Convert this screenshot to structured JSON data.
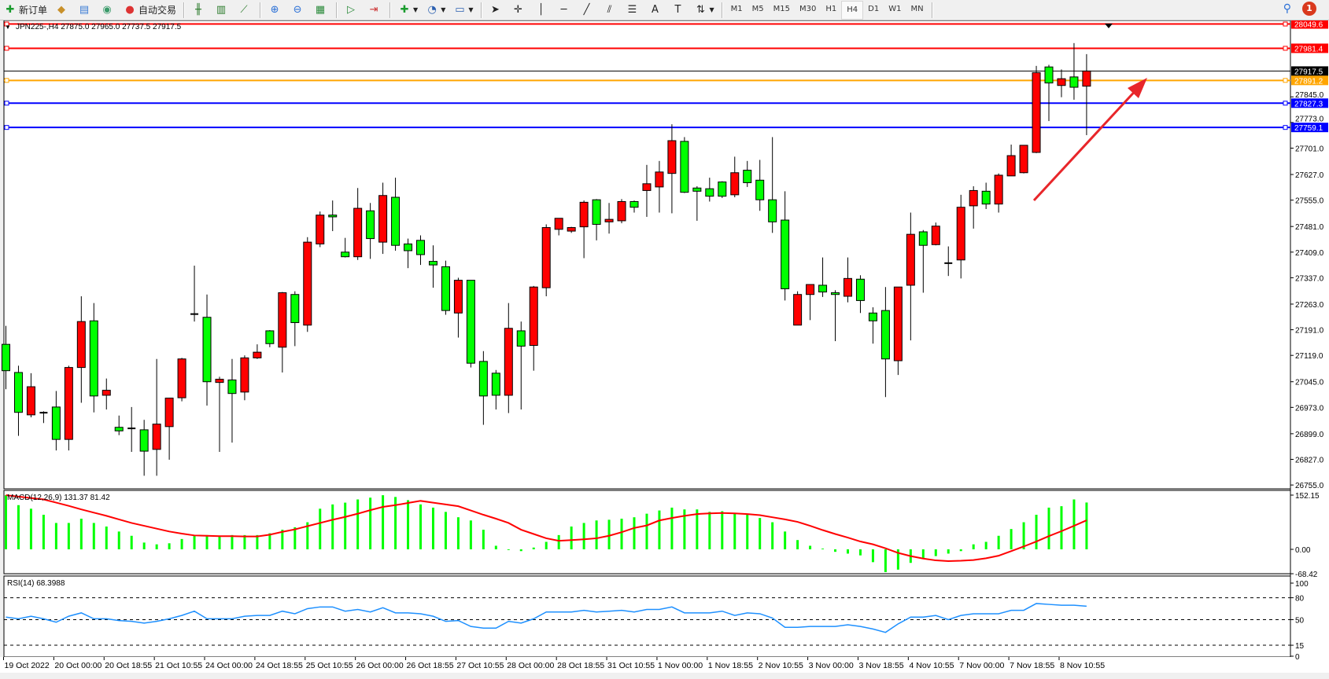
{
  "toolbar": {
    "new_order": "新订单",
    "auto_trading": "自动交易",
    "timeframes": [
      "M1",
      "M5",
      "M15",
      "M30",
      "H1",
      "H4",
      "D1",
      "W1",
      "MN"
    ],
    "active_timeframe": "H4",
    "notification_count": "1",
    "icons": [
      "new-order-icon",
      "gold-icon",
      "data-window-icon",
      "signal-icon",
      "auto-trading-icon",
      "bar-chart-icon",
      "candlestick-icon",
      "line-chart-icon",
      "zoom-in-icon",
      "zoom-out-icon",
      "tile-windows-icon",
      "auto-scroll-icon",
      "chart-shift-icon",
      "indicators-icon",
      "periods-icon",
      "templates-icon",
      "cursor-icon",
      "crosshair-icon",
      "vertical-line-icon",
      "horizontal-line-icon",
      "trendline-icon",
      "equidistant-channel-icon",
      "fibonacci-icon",
      "text-icon",
      "text-label-icon",
      "arrows-icon"
    ]
  },
  "chart": {
    "symbol_info": "JPN225-,H4  27875.0 27965.0 27737.5 27917.5",
    "colors": {
      "bull": "#ff0000",
      "bear": "#00ff00",
      "macd_hist": "#00ff00",
      "signal": "#ff0000",
      "rsi": "#1e90ff"
    }
  },
  "chart_data": [
    {
      "type": "candlestick",
      "title": "JPN225-,H4",
      "ylim": [
        26755.0,
        28049.6
      ],
      "y_ticks": [
        "27845.0",
        "27773.0",
        "27701.0",
        "27627.0",
        "27555.0",
        "27481.0",
        "27409.0",
        "27337.0",
        "27263.0",
        "27191.0",
        "27119.0",
        "27045.0",
        "26973.0",
        "26899.0",
        "26827.0",
        "26755.0"
      ],
      "x_ticks": [
        "19 Oct 2022",
        "20 Oct 00:00",
        "20 Oct 18:55",
        "21 Oct 10:55",
        "24 Oct 00:00",
        "24 Oct 18:55",
        "25 Oct 10:55",
        "26 Oct 00:00",
        "26 Oct 18:55",
        "27 Oct 10:55",
        "28 Oct 00:00",
        "28 Oct 18:55",
        "31 Oct 10:55",
        "1 Nov 00:00",
        "1 Nov 18:55",
        "2 Nov 10:55",
        "3 Nov 00:00",
        "3 Nov 18:55",
        "4 Nov 10:55",
        "7 Nov 00:00",
        "7 Nov 18:55",
        "8 Nov 10:55"
      ],
      "ohlc": [
        [
          27150,
          27202,
          27024,
          27076
        ],
        [
          27071,
          27090,
          26893,
          26959
        ],
        [
          26952,
          27069,
          26945,
          27031
        ],
        [
          26957,
          26962,
          26929,
          26958
        ],
        [
          26974,
          27019,
          26852,
          26883
        ],
        [
          26883,
          27090,
          26852,
          27085
        ],
        [
          27085,
          27285,
          26986,
          27214
        ],
        [
          27216,
          27266,
          26959,
          27005
        ],
        [
          27007,
          27054,
          26967,
          27021
        ],
        [
          26917,
          26950,
          26895,
          26907
        ],
        [
          26914,
          26974,
          26848,
          26914
        ],
        [
          26910,
          26938,
          26781,
          26850
        ],
        [
          26855,
          27109,
          26781,
          26926
        ],
        [
          26919,
          27000,
          26826,
          26999
        ],
        [
          27000,
          27112,
          26990,
          27109
        ],
        [
          27235,
          27371,
          27214,
          27234
        ],
        [
          27226,
          27290,
          26978,
          27045
        ],
        [
          27043,
          27059,
          26848,
          27052
        ],
        [
          27050,
          27109,
          26874,
          27012
        ],
        [
          27016,
          27119,
          26993,
          27112
        ],
        [
          27112,
          27150,
          27109,
          27128
        ],
        [
          27188,
          27190,
          27142,
          27152
        ],
        [
          27142,
          27297,
          27071,
          27295
        ],
        [
          27290,
          27299,
          27145,
          27211
        ],
        [
          27204,
          27451,
          27185,
          27437
        ],
        [
          27432,
          27523,
          27423,
          27513
        ],
        [
          27513,
          27554,
          27468,
          27508
        ],
        [
          27409,
          27449,
          27394,
          27396
        ],
        [
          27396,
          27589,
          27387,
          27532
        ],
        [
          27525,
          27547,
          27390,
          27447
        ],
        [
          27437,
          27604,
          27404,
          27568
        ],
        [
          27563,
          27618,
          27413,
          27428
        ],
        [
          27432,
          27447,
          27364,
          27413
        ],
        [
          27442,
          27456,
          27373,
          27402
        ],
        [
          27383,
          27428,
          27309,
          27373
        ],
        [
          27368,
          27385,
          27233,
          27245
        ],
        [
          27238,
          27337,
          27169,
          27330
        ],
        [
          27330,
          27330,
          27085,
          27097
        ],
        [
          27102,
          27131,
          26924,
          27005
        ],
        [
          27069,
          27078,
          26967,
          27007
        ],
        [
          27007,
          27266,
          26957,
          27195
        ],
        [
          27188,
          27214,
          26967,
          27145
        ],
        [
          27147,
          27314,
          27076,
          27311
        ],
        [
          27309,
          27487,
          27285,
          27478
        ],
        [
          27473,
          27504,
          27456,
          27504
        ],
        [
          27468,
          27480,
          27463,
          27478
        ],
        [
          27480,
          27554,
          27392,
          27549
        ],
        [
          27556,
          27558,
          27442,
          27487
        ],
        [
          27494,
          27547,
          27461,
          27501
        ],
        [
          27497,
          27558,
          27490,
          27551
        ],
        [
          27551,
          27554,
          27520,
          27535
        ],
        [
          27582,
          27654,
          27508,
          27601
        ],
        [
          27592,
          27665,
          27520,
          27634
        ],
        [
          27630,
          27768,
          27518,
          27722
        ],
        [
          27720,
          27732,
          27575,
          27577
        ],
        [
          27589,
          27594,
          27497,
          27580
        ],
        [
          27587,
          27618,
          27551,
          27566
        ],
        [
          27606,
          27608,
          27561,
          27566
        ],
        [
          27570,
          27677,
          27563,
          27632
        ],
        [
          27639,
          27665,
          27592,
          27604
        ],
        [
          27611,
          27668,
          27525,
          27556
        ],
        [
          27556,
          27732,
          27463,
          27494
        ],
        [
          27499,
          27580,
          27273,
          27306
        ],
        [
          27204,
          27299,
          27204,
          27290
        ],
        [
          27290,
          27318,
          27218,
          27318
        ],
        [
          27316,
          27394,
          27283,
          27297
        ],
        [
          27295,
          27302,
          27159,
          27290
        ],
        [
          27285,
          27394,
          27268,
          27335
        ],
        [
          27333,
          27344,
          27238,
          27273
        ],
        [
          27238,
          27254,
          27152,
          27216
        ],
        [
          27245,
          27311,
          27002,
          27109
        ],
        [
          27104,
          27311,
          27064,
          27311
        ],
        [
          27316,
          27520,
          27161,
          27459
        ],
        [
          27466,
          27471,
          27295,
          27428
        ],
        [
          27430,
          27492,
          27428,
          27482
        ],
        [
          27378,
          27425,
          27342,
          27377
        ],
        [
          27387,
          27570,
          27335,
          27535
        ],
        [
          27539,
          27594,
          27475,
          27582
        ],
        [
          27580,
          27604,
          27530,
          27544
        ],
        [
          27544,
          27630,
          27520,
          27625
        ],
        [
          27623,
          27711,
          27625,
          27680
        ],
        [
          27632,
          27709,
          27630,
          27709
        ],
        [
          27689,
          27932,
          27687,
          27913
        ],
        [
          27929,
          27935,
          27777,
          27884
        ],
        [
          27877,
          27922,
          27844,
          27896
        ],
        [
          27901,
          27996,
          27837,
          27872
        ],
        [
          27875,
          27965,
          27737.5,
          27917.5
        ]
      ],
      "horizontal_lines": [
        {
          "value": "28049.6",
          "color": "#ff0000"
        },
        {
          "value": "27981.4",
          "color": "#ff0000"
        },
        {
          "value": "27917.5",
          "color": "#000000"
        },
        {
          "value": "27891.2",
          "color": "#ffa500"
        },
        {
          "value": "27827.3",
          "color": "#0000ff"
        },
        {
          "value": "27759.1",
          "color": "#0000ff"
        }
      ],
      "annotation": {
        "type": "arrow",
        "color": "#e8262a"
      }
    },
    {
      "type": "bar",
      "title": "MACD(12,26,9) 131.37 81.42",
      "ylim": [
        -68.42,
        152.15
      ],
      "y_ticks": [
        "152.15",
        "0.00",
        "-68.42"
      ],
      "macd": [
        152,
        124,
        114,
        97,
        74,
        74,
        86,
        74,
        64,
        50,
        38,
        19,
        14,
        17,
        29,
        40,
        40,
        38,
        40,
        40,
        40,
        45,
        55,
        62,
        76,
        114,
        126,
        131,
        140,
        145,
        152,
        147,
        138,
        126,
        117,
        105,
        90,
        81,
        55,
        10,
        -2,
        -5,
        5,
        21,
        40,
        64,
        74,
        81,
        83,
        86,
        90,
        100,
        109,
        117,
        112,
        112,
        105,
        107,
        102,
        97,
        88,
        76,
        50,
        26,
        10,
        2,
        -7,
        -12,
        -17,
        -36,
        -64,
        -57,
        -38,
        -26,
        -19,
        -12,
        -5,
        14,
        21,
        38,
        57,
        76,
        97,
        117,
        121,
        140,
        131.37
      ],
      "signal": [
        152,
        148,
        144,
        140,
        131,
        122,
        112,
        103,
        94,
        84,
        74,
        66,
        58,
        50,
        44,
        39,
        38,
        37,
        37,
        36,
        36,
        41,
        49,
        56,
        65,
        74,
        83,
        91,
        100,
        110,
        119,
        124,
        130,
        136,
        131,
        126,
        121,
        109,
        97,
        86,
        74,
        55,
        43,
        31,
        24,
        26,
        28,
        31,
        38,
        48,
        60,
        67,
        81,
        88,
        94,
        99,
        101,
        102,
        101,
        99,
        96,
        90,
        84,
        77,
        66,
        54,
        43,
        33,
        22,
        14,
        3,
        -10,
        -19,
        -26,
        -31,
        -33,
        -32,
        -30,
        -25,
        -18,
        -5,
        8,
        22,
        37,
        51,
        66,
        81.42
      ]
    },
    {
      "type": "line",
      "title": "RSI(14) 68.3988",
      "ylim": [
        0,
        100
      ],
      "y_ticks": [
        "100",
        "80",
        "50",
        "15",
        "0"
      ],
      "levels": [
        80,
        50,
        15
      ],
      "values": [
        53.5,
        51.2,
        54.7,
        51.2,
        46.5,
        54.7,
        59.3,
        51.2,
        51.2,
        48.8,
        47.7,
        45.3,
        47.7,
        51.2,
        55.8,
        61.6,
        51.2,
        51.2,
        51.2,
        54.7,
        55.8,
        55.8,
        61.6,
        58.1,
        65.1,
        67.4,
        67.4,
        61.6,
        64,
        60.5,
        66.3,
        59.3,
        59.3,
        58.1,
        54.7,
        47.7,
        48.8,
        40.7,
        38.4,
        38.4,
        47.7,
        45.3,
        51.2,
        60.5,
        60.5,
        60.5,
        62.8,
        60.5,
        61.6,
        62.8,
        60.5,
        64,
        64,
        67.4,
        59.3,
        59.3,
        59.3,
        61.6,
        55.8,
        59.3,
        58.1,
        52.3,
        39.5,
        39.5,
        40.7,
        40.7,
        40.7,
        43,
        40.7,
        37.2,
        32.6,
        44.2,
        53.5,
        53.5,
        55.8,
        50,
        55.8,
        58.1,
        58.1,
        58.1,
        62.8,
        62.8,
        72.1,
        70.9,
        69.8,
        69.8,
        68.3988
      ]
    }
  ]
}
